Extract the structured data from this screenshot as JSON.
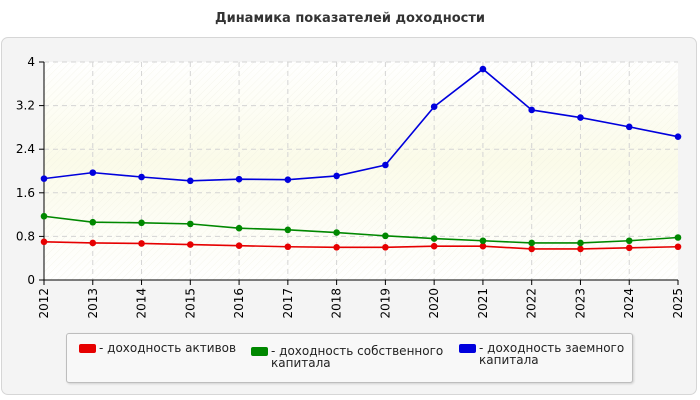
{
  "chart_data": {
    "type": "line",
    "title": "Динамика показателей доходности",
    "xlabel": "",
    "ylabel": "",
    "x": [
      "2012",
      "2013",
      "2014",
      "2015",
      "2016",
      "2017",
      "2018",
      "2019",
      "2020",
      "2021",
      "2022",
      "2023",
      "2024",
      "2025"
    ],
    "yticks": [
      "0",
      "0.8",
      "1.6",
      "2.4",
      "3.2",
      "4"
    ],
    "ylim": [
      0,
      4
    ],
    "grid": true,
    "legend_position": "bottom",
    "series": [
      {
        "name": "- доходность активов",
        "color": "#e60000",
        "values": [
          0.7,
          0.68,
          0.67,
          0.65,
          0.63,
          0.61,
          0.6,
          0.6,
          0.62,
          0.62,
          0.57,
          0.57,
          0.59,
          0.61
        ]
      },
      {
        "name": "- доходность собственного\nкапитала",
        "color": "#008800",
        "values": [
          1.17,
          1.06,
          1.05,
          1.03,
          0.95,
          0.92,
          0.87,
          0.81,
          0.76,
          0.72,
          0.68,
          0.68,
          0.72,
          0.78
        ]
      },
      {
        "name": "- доходность заемного\nкапитала",
        "color": "#0000dd",
        "values": [
          1.86,
          1.97,
          1.89,
          1.82,
          1.85,
          1.84,
          1.91,
          2.11,
          3.18,
          3.87,
          3.12,
          2.98,
          2.81,
          2.63
        ]
      }
    ]
  }
}
